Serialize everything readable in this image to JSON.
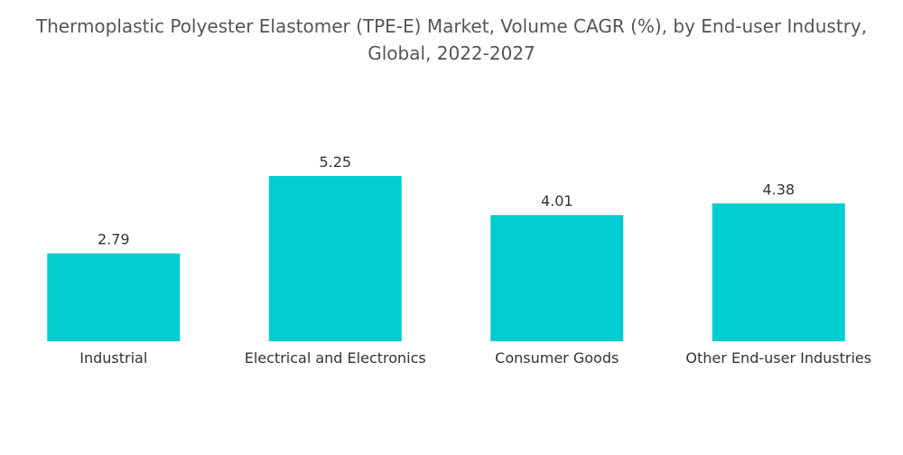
{
  "chart_data": {
    "type": "bar",
    "title": "Thermoplastic Polyester Elastomer (TPE-E) Market, Volume CAGR (%), by End-user Industry, Global, 2022-2027",
    "categories": [
      "Industrial",
      "Electrical and Electronics",
      "Consumer Goods",
      "Other End-user Industries"
    ],
    "values": [
      2.79,
      5.25,
      4.01,
      4.38
    ],
    "color": "#00cdd0"
  }
}
